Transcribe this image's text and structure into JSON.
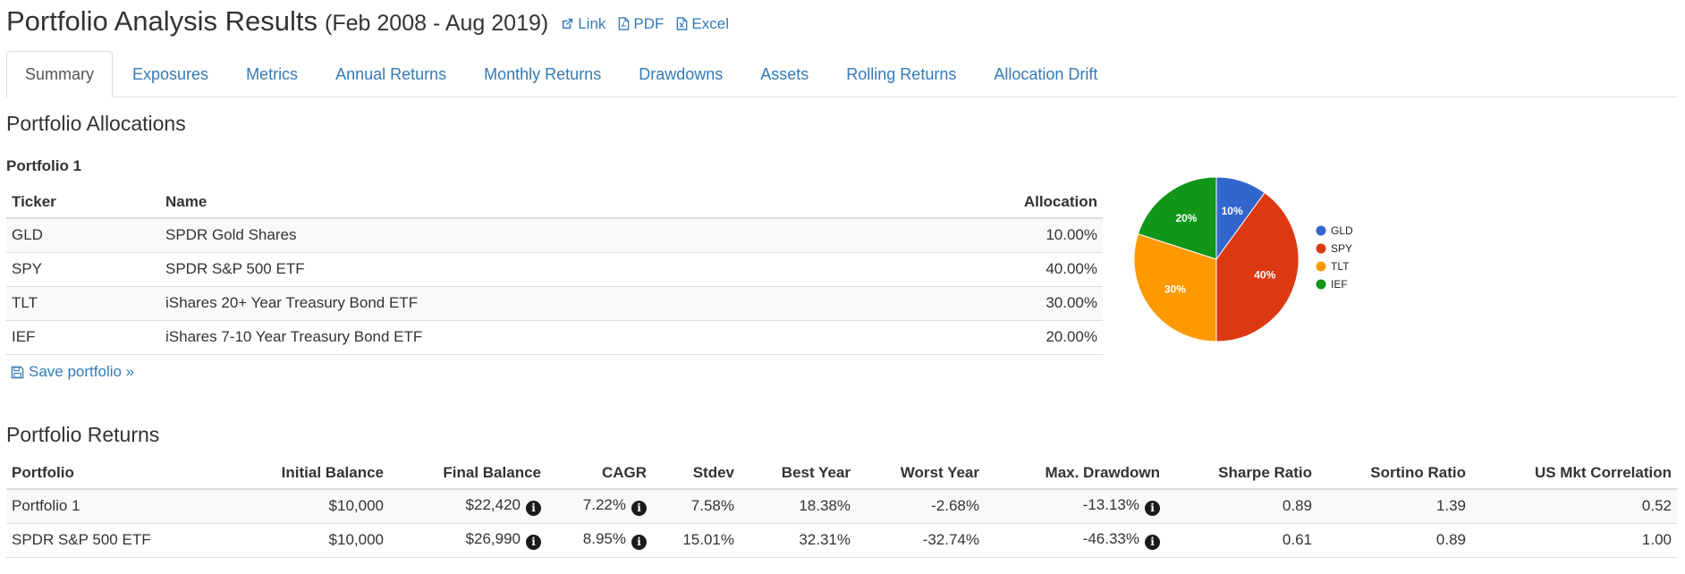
{
  "header": {
    "title": "Portfolio Analysis Results",
    "subtitle": "(Feb 2008 - Aug 2019)",
    "links": [
      {
        "label": "Link",
        "icon": "external-link-icon"
      },
      {
        "label": "PDF",
        "icon": "pdf-file-icon"
      },
      {
        "label": "Excel",
        "icon": "excel-file-icon"
      }
    ]
  },
  "tabs": [
    {
      "label": "Summary",
      "active": true
    },
    {
      "label": "Exposures"
    },
    {
      "label": "Metrics"
    },
    {
      "label": "Annual Returns"
    },
    {
      "label": "Monthly Returns"
    },
    {
      "label": "Drawdowns"
    },
    {
      "label": "Assets"
    },
    {
      "label": "Rolling Returns"
    },
    {
      "label": "Allocation Drift"
    }
  ],
  "allocations": {
    "section_title": "Portfolio Allocations",
    "portfolio_name": "Portfolio 1",
    "columns": [
      "Ticker",
      "Name",
      "Allocation"
    ],
    "rows": [
      {
        "ticker": "GLD",
        "name": "SPDR Gold Shares",
        "allocation": "10.00%"
      },
      {
        "ticker": "SPY",
        "name": "SPDR S&P 500 ETF",
        "allocation": "40.00%"
      },
      {
        "ticker": "TLT",
        "name": "iShares 20+ Year Treasury Bond ETF",
        "allocation": "30.00%"
      },
      {
        "ticker": "IEF",
        "name": "iShares 7-10 Year Treasury Bond ETF",
        "allocation": "20.00%"
      }
    ],
    "save_label": "Save portfolio »"
  },
  "chart_data": {
    "type": "pie",
    "categories": [
      "GLD",
      "SPY",
      "TLT",
      "IEF"
    ],
    "values": [
      10,
      40,
      30,
      20
    ],
    "slice_labels": [
      "10%",
      "40%",
      "30%",
      "20%"
    ],
    "colors": [
      "#3366cc",
      "#dc3912",
      "#ff9900",
      "#109618"
    ],
    "legend_position": "right"
  },
  "returns": {
    "section_title": "Portfolio Returns",
    "columns": [
      "Portfolio",
      "Initial Balance",
      "Final Balance",
      "CAGR",
      "Stdev",
      "Best Year",
      "Worst Year",
      "Max. Drawdown",
      "Sharpe Ratio",
      "Sortino Ratio",
      "US Mkt Correlation"
    ],
    "rows": [
      {
        "portfolio": "Portfolio 1",
        "initial": "$10,000",
        "final": "$22,420",
        "cagr": "7.22%",
        "stdev": "7.58%",
        "best": "18.38%",
        "worst": "-2.68%",
        "maxdd": "-13.13%",
        "sharpe": "0.89",
        "sortino": "1.39",
        "corr": "0.52"
      },
      {
        "portfolio": "SPDR S&P 500 ETF",
        "initial": "$10,000",
        "final": "$26,990",
        "cagr": "8.95%",
        "stdev": "15.01%",
        "best": "32.31%",
        "worst": "-32.74%",
        "maxdd": "-46.33%",
        "sharpe": "0.61",
        "sortino": "0.89",
        "corr": "1.00"
      }
    ]
  }
}
